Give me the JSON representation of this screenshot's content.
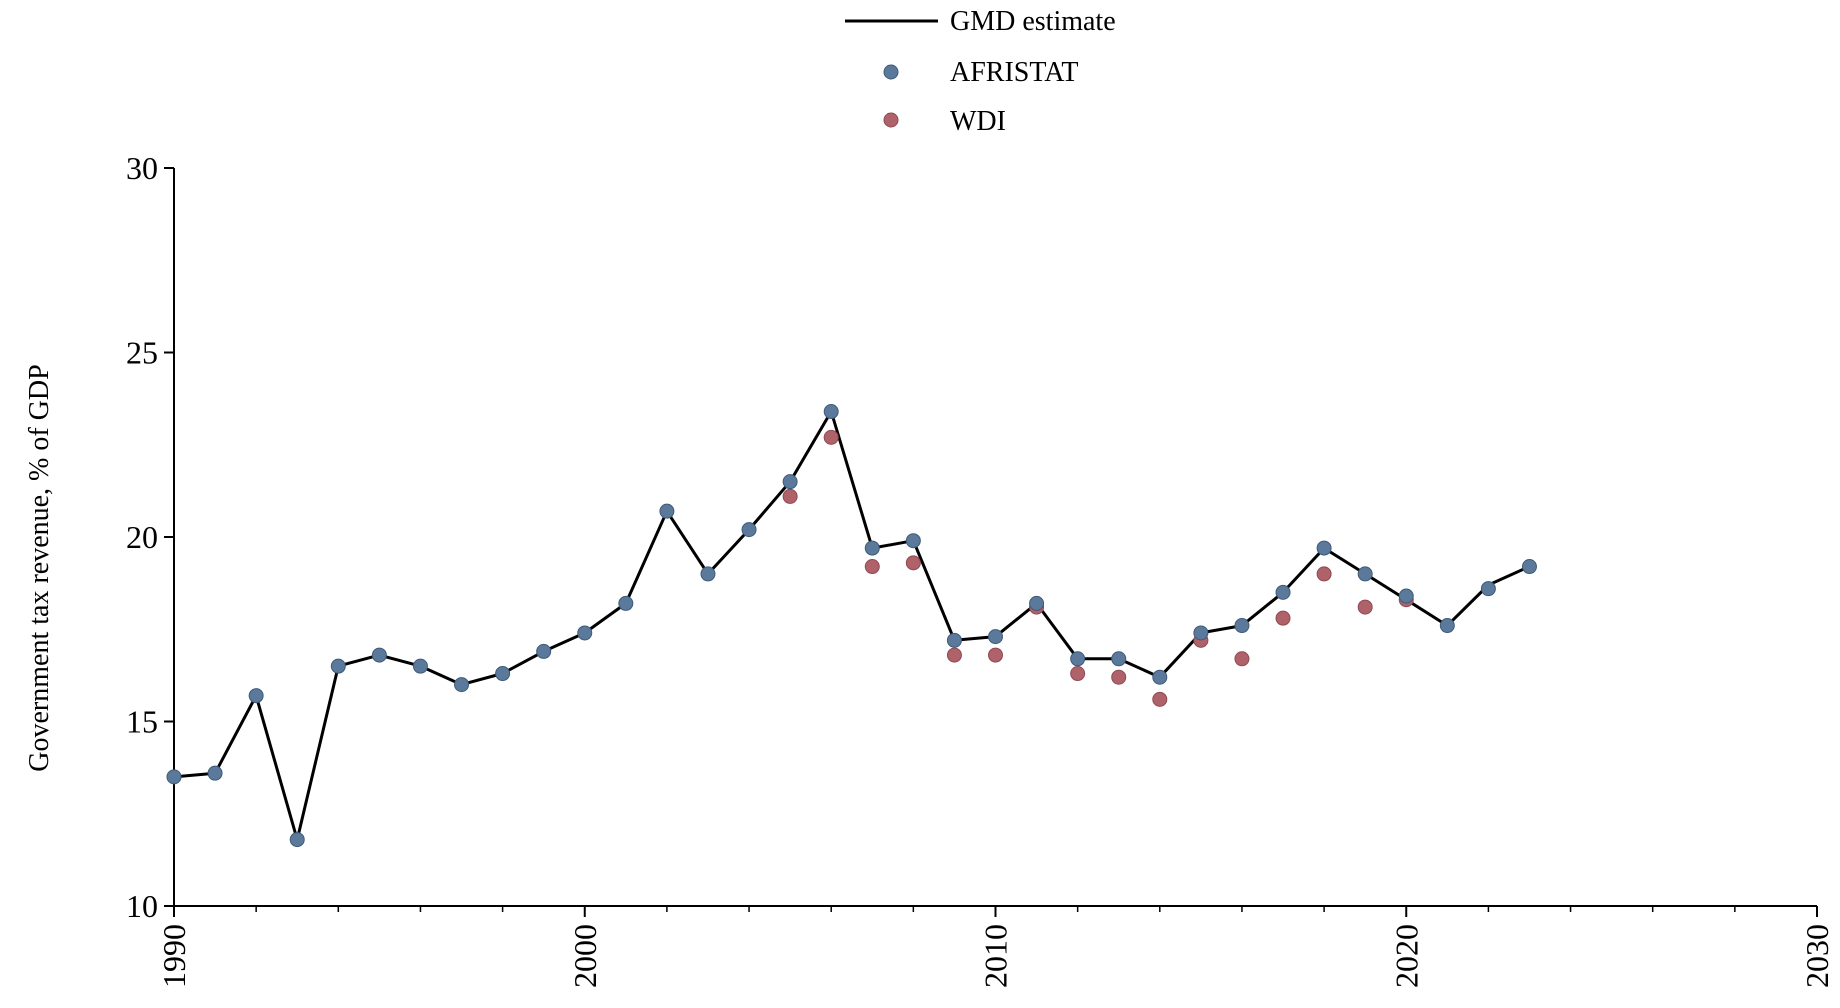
{
  "chart_data": {
    "type": "line",
    "title": "",
    "xlabel": "",
    "ylabel": "Government tax revenue, % of GDP",
    "xlim": [
      1990,
      2030
    ],
    "ylim": [
      10,
      30
    ],
    "x_ticks": [
      1990,
      2000,
      2010,
      2020,
      2030
    ],
    "y_ticks": [
      10,
      15,
      20,
      25,
      30
    ],
    "grid": false,
    "legend_placement": "top-center",
    "colors": {
      "line": "#000000",
      "afristat": "#5b7a9b",
      "wdi": "#b0626a"
    },
    "series": [
      {
        "name": "GMD estimate",
        "kind": "line",
        "x": [
          1990,
          1991,
          1992,
          1993,
          1994,
          1995,
          1996,
          1997,
          1998,
          1999,
          2000,
          2001,
          2002,
          2003,
          2004,
          2005,
          2006,
          2007,
          2008,
          2009,
          2010,
          2011,
          2012,
          2013,
          2014,
          2015,
          2016,
          2017,
          2018,
          2019,
          2020,
          2021,
          2022,
          2023
        ],
        "y": [
          13.5,
          13.6,
          15.7,
          11.8,
          16.5,
          16.8,
          16.5,
          16.0,
          16.3,
          16.9,
          17.4,
          18.2,
          20.7,
          19.0,
          20.2,
          21.5,
          23.4,
          19.7,
          19.9,
          17.2,
          17.3,
          18.2,
          16.7,
          16.7,
          16.2,
          17.4,
          17.6,
          18.5,
          19.7,
          19.0,
          18.3,
          17.6,
          18.7,
          19.2
        ]
      },
      {
        "name": "AFRISTAT",
        "kind": "scatter",
        "x": [
          1990,
          1991,
          1992,
          1993,
          1994,
          1995,
          1996,
          1997,
          1998,
          1999,
          2000,
          2001,
          2002,
          2003,
          2004,
          2005,
          2006,
          2007,
          2008,
          2009,
          2010,
          2011,
          2012,
          2013,
          2014,
          2015,
          2016,
          2017,
          2018,
          2019,
          2020,
          2021,
          2022,
          2023
        ],
        "y": [
          13.5,
          13.6,
          15.7,
          11.8,
          16.5,
          16.8,
          16.5,
          16.0,
          16.3,
          16.9,
          17.4,
          18.2,
          20.7,
          19.0,
          20.2,
          21.5,
          23.4,
          19.7,
          19.9,
          17.2,
          17.3,
          18.2,
          16.7,
          16.7,
          16.2,
          17.4,
          17.6,
          18.5,
          19.7,
          19.0,
          18.4,
          17.6,
          18.6,
          19.2
        ]
      },
      {
        "name": "WDI",
        "kind": "scatter",
        "x": [
          2005,
          2006,
          2007,
          2008,
          2009,
          2010,
          2011,
          2012,
          2013,
          2014,
          2015,
          2016,
          2017,
          2018,
          2019,
          2020
        ],
        "y": [
          21.1,
          22.7,
          19.2,
          19.3,
          16.8,
          16.8,
          18.1,
          16.3,
          16.2,
          15.6,
          17.2,
          16.7,
          17.8,
          19.0,
          18.1,
          18.3
        ]
      }
    ]
  }
}
